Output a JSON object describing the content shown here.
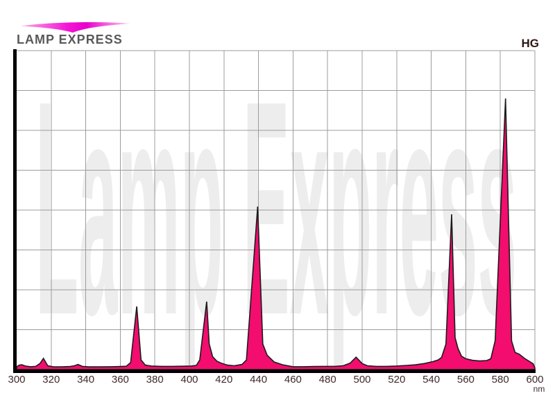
{
  "logo": {
    "title": "LAMP EXPRESS",
    "swoosh_icon": "magenta-swoosh"
  },
  "header": {
    "lamp_type_label": "HG"
  },
  "watermark": {
    "text": "Lamp Express",
    "color": "#ededed"
  },
  "chart_data": {
    "type": "area",
    "series_name": "HG",
    "x_unit_label": "nm",
    "xlim": [
      300,
      600
    ],
    "ylim": [
      0,
      100
    ],
    "x_ticks": [
      300,
      320,
      340,
      360,
      380,
      400,
      420,
      440,
      460,
      480,
      500,
      520,
      540,
      560,
      580,
      600
    ],
    "y_gridline_rows": 8,
    "grid": true,
    "colors": {
      "fill": "#f20d6e",
      "outline": "#1c1c1c",
      "grid": "#9c9c9c",
      "axis": "#000000",
      "tick_label": "#3e2a2a"
    },
    "points": [
      [
        300,
        0.9
      ],
      [
        301.5,
        1.4
      ],
      [
        303,
        1.5
      ],
      [
        305,
        1.1
      ],
      [
        308,
        0.9
      ],
      [
        311,
        1.0
      ],
      [
        313.5,
        1.9
      ],
      [
        315.5,
        3.5
      ],
      [
        318,
        1.2
      ],
      [
        321,
        0.9
      ],
      [
        326,
        0.85
      ],
      [
        331,
        0.95
      ],
      [
        333.5,
        1.2
      ],
      [
        335.5,
        1.6
      ],
      [
        338,
        1.0
      ],
      [
        342,
        0.85
      ],
      [
        348,
        0.85
      ],
      [
        355,
        0.9
      ],
      [
        360,
        0.95
      ],
      [
        363.5,
        1.05
      ],
      [
        366,
        2.2
      ],
      [
        369.5,
        19.8
      ],
      [
        372,
        3.0
      ],
      [
        374.5,
        1.4
      ],
      [
        378,
        1.1
      ],
      [
        384,
        1.0
      ],
      [
        390,
        1.0
      ],
      [
        396,
        1.05
      ],
      [
        401,
        1.1
      ],
      [
        404,
        1.3
      ],
      [
        406,
        3.0
      ],
      [
        410,
        21.3
      ],
      [
        411.5,
        8.0
      ],
      [
        413.5,
        4.0
      ],
      [
        416,
        2.6
      ],
      [
        419,
        1.9
      ],
      [
        422,
        1.4
      ],
      [
        426,
        1.2
      ],
      [
        430.5,
        1.6
      ],
      [
        433,
        3.0
      ],
      [
        439.5,
        51.1
      ],
      [
        442.5,
        8.0
      ],
      [
        445,
        4.5
      ],
      [
        449,
        2.4
      ],
      [
        454,
        1.5
      ],
      [
        460,
        0.9
      ],
      [
        466,
        0.9
      ],
      [
        472,
        0.95
      ],
      [
        478,
        1.0
      ],
      [
        484,
        1.0
      ],
      [
        489,
        1.2
      ],
      [
        493,
        2.0
      ],
      [
        496.5,
        3.9
      ],
      [
        500,
        1.9
      ],
      [
        503,
        1.2
      ],
      [
        508,
        1.0
      ],
      [
        514,
        1.0
      ],
      [
        520,
        1.1
      ],
      [
        526,
        1.3
      ],
      [
        531,
        1.5
      ],
      [
        536,
        1.9
      ],
      [
        541,
        2.5
      ],
      [
        544,
        3.0
      ],
      [
        546,
        3.8
      ],
      [
        548.5,
        8.0
      ],
      [
        551.8,
        48.7
      ],
      [
        553.8,
        10.0
      ],
      [
        555.5,
        6.6
      ],
      [
        557.5,
        4.2
      ],
      [
        560,
        3.4
      ],
      [
        564,
        2.9
      ],
      [
        568,
        2.7
      ],
      [
        572,
        2.8
      ],
      [
        574.5,
        3.4
      ],
      [
        577,
        9.0
      ],
      [
        583,
        85.0
      ],
      [
        586.5,
        9.0
      ],
      [
        588.5,
        5.4
      ],
      [
        591,
        4.8
      ],
      [
        594,
        3.5
      ],
      [
        597,
        2.5
      ],
      [
        599,
        1.8
      ],
      [
        600,
        0.5
      ]
    ]
  }
}
